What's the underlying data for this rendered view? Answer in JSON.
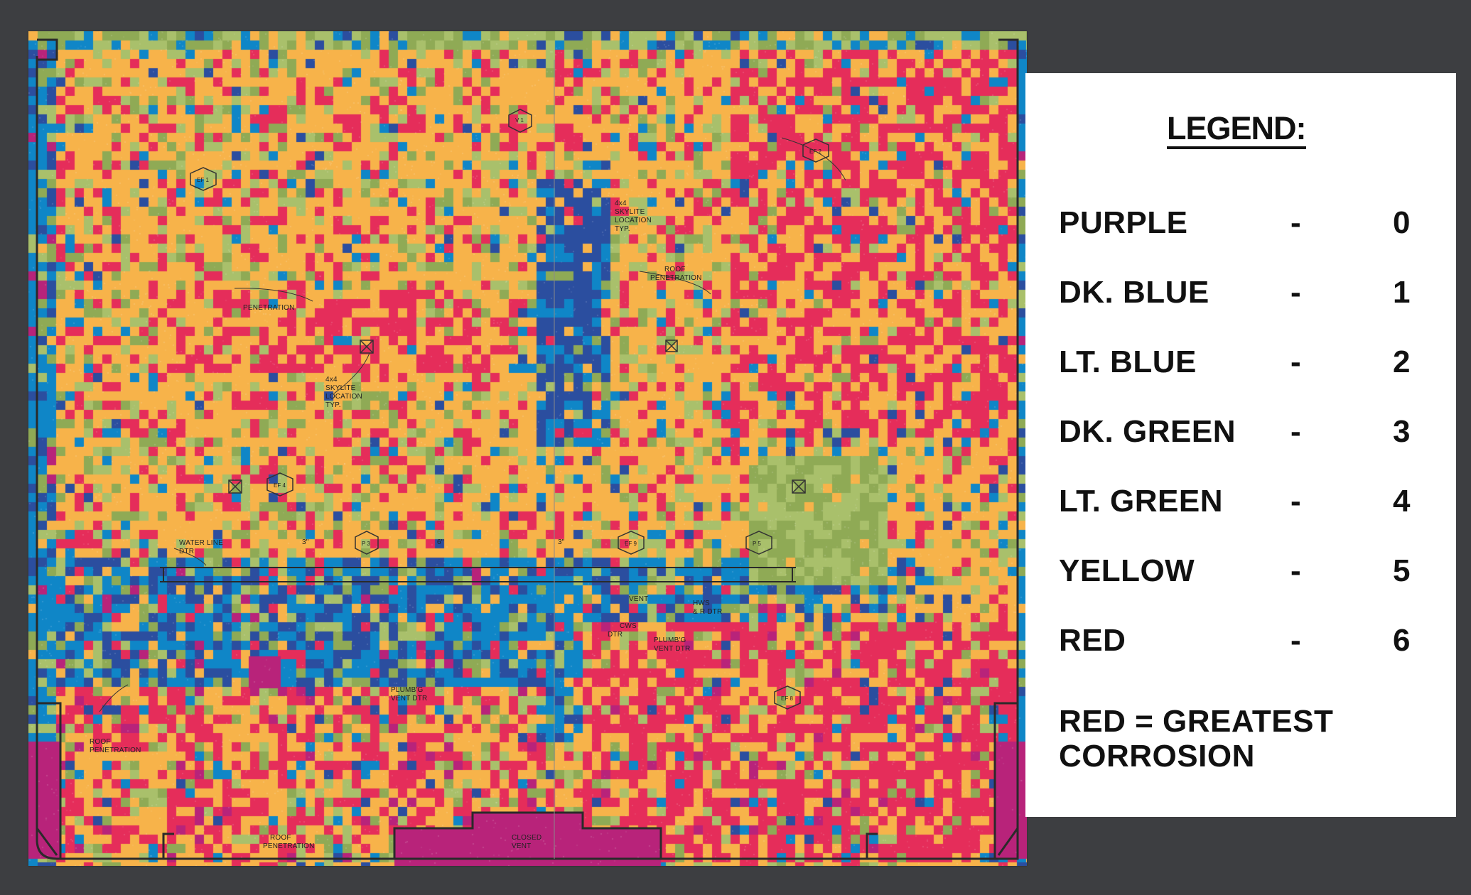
{
  "plan_labels": {
    "skylite_left": [
      "4x4",
      "SKYLITE",
      "LOCATION",
      "TYP."
    ],
    "skylite_right": [
      "4x4",
      "SKYLITE",
      "LOCATION",
      "TYP."
    ],
    "roof_penetration_left": "PENETRATION",
    "roof_penetration_right": [
      "ROOF",
      "PENETRATION"
    ],
    "water_line": [
      "WATER LINE",
      "DTR"
    ],
    "vent": "VENT",
    "hws": [
      "HWS",
      "& R DTR"
    ],
    "cws": [
      "CWS",
      "DTR"
    ],
    "plumb_vent_center": [
      "PLUMB'G",
      "VENT DTR"
    ],
    "plumb_vent_left": [
      "PLUMB'G",
      "VENT DTR"
    ],
    "roof_penetration_bottom_left": [
      "ROOF",
      "PENETRATION"
    ],
    "roof_penetration_bottom": [
      "ROOF",
      "PENETRATION"
    ],
    "closed_vent": [
      "CLOSED",
      "VENT"
    ],
    "three_inch_a": "3\"",
    "three_inch_b": "3\"",
    "six_inch": "6\"",
    "markers": [
      "V 1",
      "EF 2",
      "EF 4",
      "P 3",
      "EF 9",
      "P 5",
      "P 6",
      "EF 8",
      "P 8",
      "EF 1"
    ]
  },
  "legend": {
    "title": "LEGEND:",
    "items": [
      {
        "color_name": "PURPLE",
        "dash": "-",
        "value": "0",
        "hex": "#b8237a"
      },
      {
        "color_name": "DK. BLUE",
        "dash": "-",
        "value": "1",
        "hex": "#2b4e9f"
      },
      {
        "color_name": "LT. BLUE",
        "dash": "-",
        "value": "2",
        "hex": "#0f86c7"
      },
      {
        "color_name": "DK. GREEN",
        "dash": "-",
        "value": "3",
        "hex": "#8faa55"
      },
      {
        "color_name": "LT. GREEN",
        "dash": "-",
        "value": "4",
        "hex": "#a9c06b"
      },
      {
        "color_name": "YELLOW",
        "dash": "-",
        "value": "5",
        "hex": "#f7b34a"
      },
      {
        "color_name": "RED",
        "dash": "-",
        "value": "6",
        "hex": "#e52d5a"
      }
    ],
    "note_line1": "RED = GREATEST",
    "note_line2": "CORROSION"
  },
  "colors": {
    "background": "#3d3e41",
    "paper": "#ffffff",
    "plan_lines": "#2a2a2a"
  }
}
